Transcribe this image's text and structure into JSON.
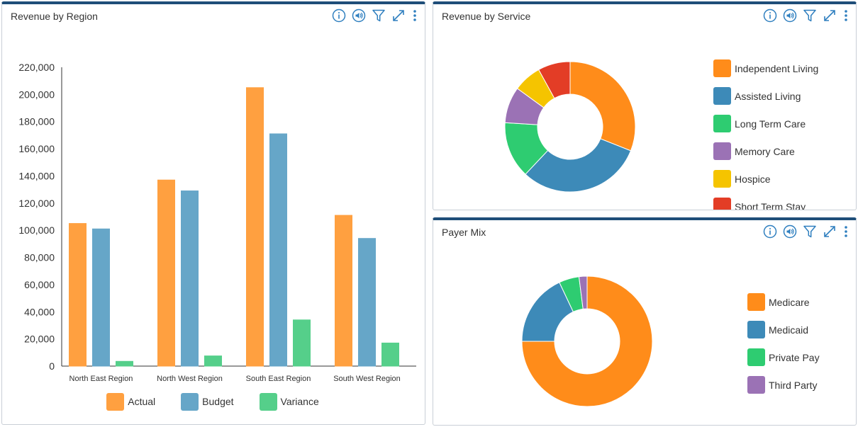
{
  "colors": {
    "orange": "#ff8c1a",
    "blue": "#3d8ab8",
    "green": "#2ecc71",
    "purple": "#9b72b5",
    "yellow": "#f5c400",
    "red": "#e33d26",
    "icon": "#2f7fbf"
  },
  "toolbar_icons": [
    "info-icon",
    "speaker-icon",
    "filter-icon",
    "expand-icon",
    "more-vertical-icon"
  ],
  "panels": {
    "region": {
      "title": "Revenue by Region"
    },
    "service": {
      "title": "Revenue by Service"
    },
    "payer": {
      "title": "Payer Mix"
    }
  },
  "chart_data": [
    {
      "id": "revenue-by-region",
      "type": "bar",
      "title": "Revenue by Region",
      "categories": [
        "North East Region",
        "North West Region",
        "South East Region",
        "South West Region"
      ],
      "series": [
        {
          "name": "Actual",
          "color": "#ffa040",
          "values": [
            105000,
            137000,
            205000,
            111000
          ]
        },
        {
          "name": "Budget",
          "color": "#66a6c8",
          "values": [
            101000,
            129000,
            171000,
            94000
          ]
        },
        {
          "name": "Variance",
          "color": "#55cf8a",
          "values": [
            3500,
            7500,
            34000,
            17000
          ]
        }
      ],
      "yticks": [
        "0",
        "20,000",
        "40,000",
        "60,000",
        "80,000",
        "100,000",
        "120,000",
        "140,000",
        "160,000",
        "180,000",
        "200,000",
        "220,000"
      ],
      "ylim": [
        0,
        220000
      ],
      "legend_position": "bottom",
      "grid": false
    },
    {
      "id": "revenue-by-service",
      "type": "pie",
      "title": "Revenue by Service",
      "donut": true,
      "labels": [
        "Independent Living",
        "Assisted Living",
        "Long Term Care",
        "Memory Care",
        "Hospice",
        "Short Term Stay"
      ],
      "values": [
        31,
        31,
        14,
        9,
        7,
        8
      ],
      "colors": [
        "#ff8c1a",
        "#3d8ab8",
        "#2ecc71",
        "#9b72b5",
        "#f5c400",
        "#e33d26"
      ],
      "legend_position": "right"
    },
    {
      "id": "payer-mix",
      "type": "pie",
      "title": "Payer Mix",
      "donut": true,
      "labels": [
        "Medicare",
        "Medicaid",
        "Private Pay",
        "Third Party"
      ],
      "values": [
        75,
        18,
        5,
        2
      ],
      "colors": [
        "#ff8c1a",
        "#3d8ab8",
        "#2ecc71",
        "#9b72b5"
      ],
      "legend_position": "right"
    }
  ]
}
